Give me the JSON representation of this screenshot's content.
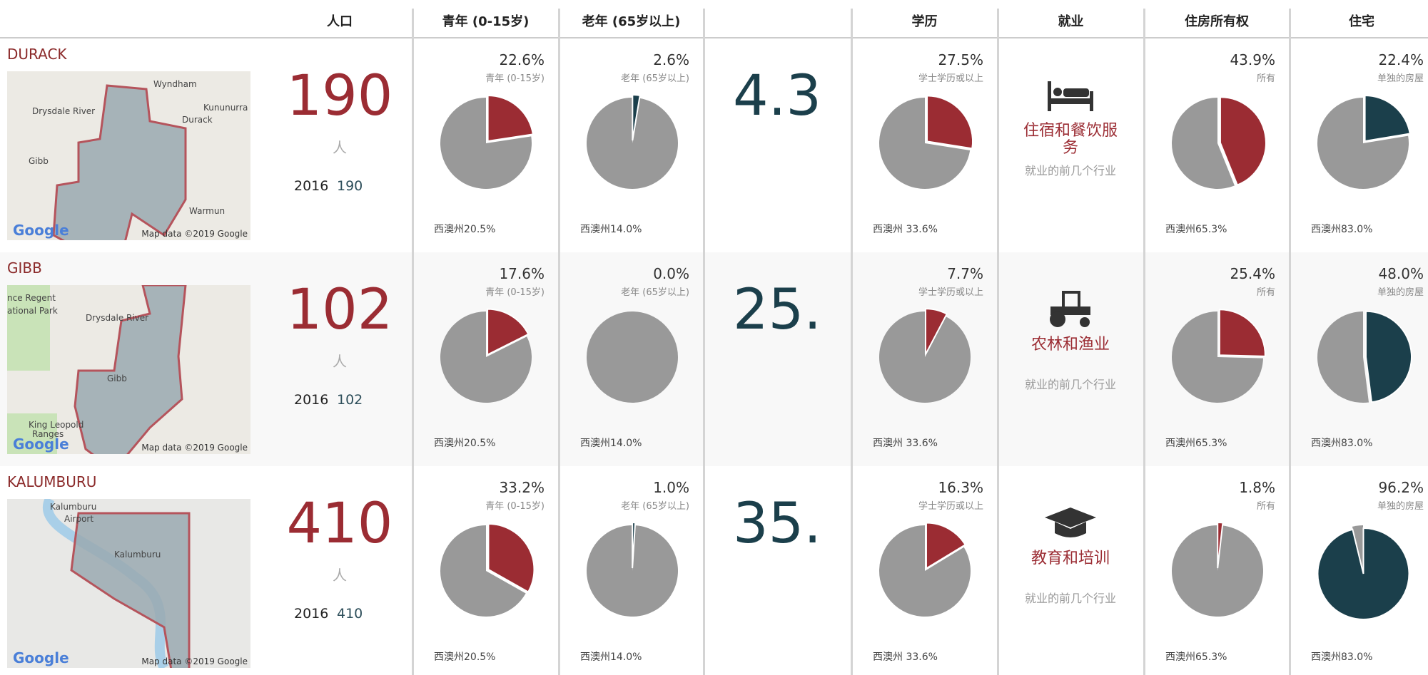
{
  "headers": {
    "population": "人口",
    "youth": "青年 (0-15岁)",
    "old": "老年 (65岁以上)",
    "education": "学历",
    "employment": "就业",
    "ownership": "住房所有权",
    "housing": "住宅"
  },
  "rows": [
    {
      "name": "DURACK",
      "map": {
        "logo": "Google",
        "credit": "Map data ©2019 Google",
        "places": [
          "Wyndham",
          "Kununurra",
          "Durack",
          "Drysdale River",
          "Gibb",
          "Warmun"
        ]
      },
      "population": 190,
      "unit": "人",
      "year": "2016",
      "population_2016": 190,
      "youth": {
        "value": 22.6,
        "label": "22.6%",
        "caption": "青年 (0-15岁)",
        "state": "西澳州20.5%"
      },
      "old": {
        "value": 2.6,
        "label": "2.6%",
        "caption": "老年 (65岁以上)",
        "state": "西澳州14.0%"
      },
      "median": "4.3",
      "education": {
        "value": 27.5,
        "label": "27.5%",
        "caption": "学士学历或以上",
        "state": "西澳州 33.6%"
      },
      "employment": {
        "industry": "住宿和餐饮服务",
        "caption": "就业的前几个行业"
      },
      "ownership": {
        "value": 43.9,
        "label": "43.9%",
        "caption": "所有",
        "state": "西澳州65.3%"
      },
      "housing": {
        "value": 22.4,
        "label": "22.4%",
        "caption": "单独的房屋",
        "state": "西澳州83.0%"
      }
    },
    {
      "name": "GIBB",
      "map": {
        "logo": "Google",
        "credit": "Map data ©2019 Google",
        "places": [
          "nce Regent",
          "ational Park",
          "Drysdale River",
          "Gibb",
          "King Leopold",
          "Ranges"
        ]
      },
      "population": 102,
      "unit": "人",
      "year": "2016",
      "population_2016": 102,
      "youth": {
        "value": 17.6,
        "label": "17.6%",
        "caption": "青年 (0-15岁)",
        "state": "西澳州20.5%"
      },
      "old": {
        "value": 0.0,
        "label": "0.0%",
        "caption": "老年 (65岁以上)",
        "state": "西澳州14.0%"
      },
      "median": "25.",
      "education": {
        "value": 7.7,
        "label": "7.7%",
        "caption": "学士学历或以上",
        "state": "西澳州 33.6%"
      },
      "employment": {
        "industry": "农林和渔业",
        "caption": "就业的前几个行业"
      },
      "ownership": {
        "value": 25.4,
        "label": "25.4%",
        "caption": "所有",
        "state": "西澳州65.3%"
      },
      "housing": {
        "value": 48.0,
        "label": "48.0%",
        "caption": "单独的房屋",
        "state": "西澳州83.0%"
      }
    },
    {
      "name": "KALUMBURU",
      "map": {
        "logo": "Google",
        "credit": "Map data ©2019 Google",
        "places": [
          "Kalumburu",
          "Airport",
          "Kalumburu"
        ]
      },
      "population": 410,
      "unit": "人",
      "year": "2016",
      "population_2016": 410,
      "youth": {
        "value": 33.2,
        "label": "33.2%",
        "caption": "青年 (0-15岁)",
        "state": "西澳州20.5%"
      },
      "old": {
        "value": 1.0,
        "label": "1.0%",
        "caption": "老年 (65岁以上)",
        "state": "西澳州14.0%"
      },
      "median": "35.",
      "education": {
        "value": 16.3,
        "label": "16.3%",
        "caption": "学士学历或以上",
        "state": "西澳州 33.6%"
      },
      "employment": {
        "industry": "教育和培训",
        "caption": "就业的前几个行业"
      },
      "ownership": {
        "value": 1.8,
        "label": "1.8%",
        "caption": "所有",
        "state": "西澳州65.3%"
      },
      "housing": {
        "value": 96.2,
        "label": "96.2%",
        "caption": "单独的房屋",
        "state": "西澳州83.0%"
      }
    }
  ]
}
